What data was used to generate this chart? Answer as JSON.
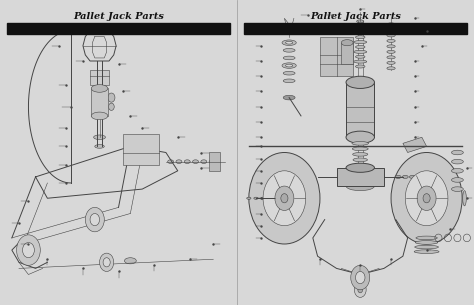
{
  "title_left": "Pallet Jack Parts",
  "title_right": "Pallet Jack Parts",
  "bg_color": "#d8d8d8",
  "panel_bg": "#d8d8d8",
  "divider_color": "#111111",
  "title_color": "#111111",
  "line_color": "#444444",
  "fig_width": 4.74,
  "fig_height": 3.05,
  "dpi": 100
}
